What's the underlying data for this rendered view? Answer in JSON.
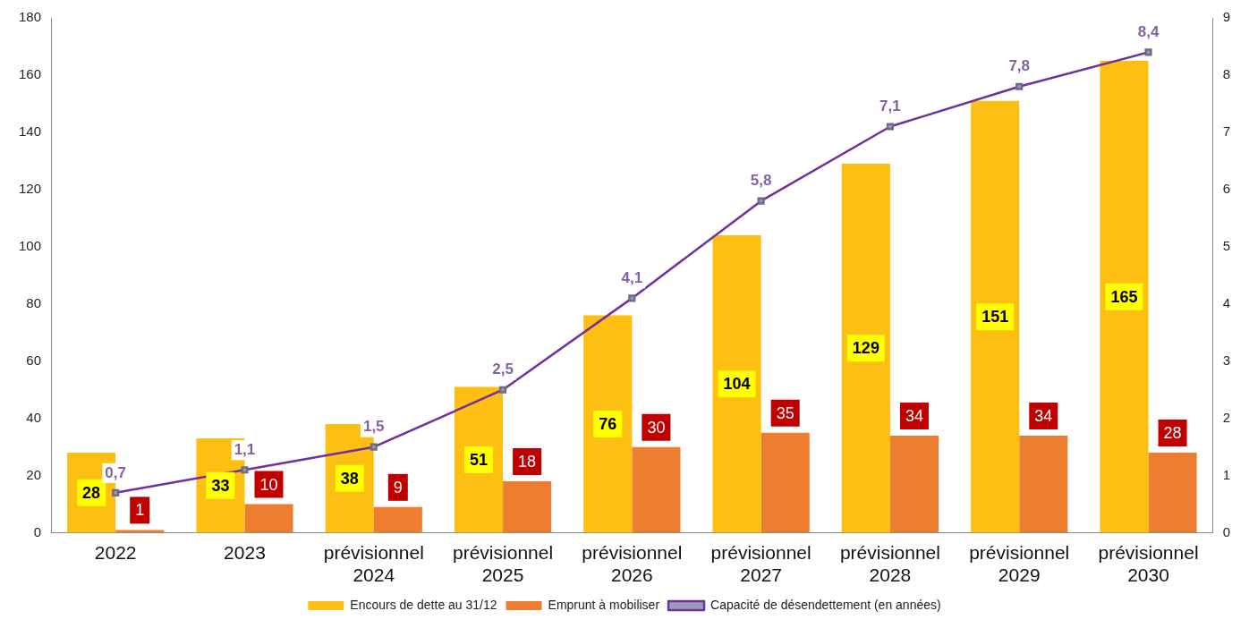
{
  "chart_data": {
    "type": "bar",
    "categories": [
      "2022",
      "2023",
      "prévisionnel 2024",
      "prévisionnel 2025",
      "prévisionnel 2026",
      "prévisionnel 2027",
      "prévisionnel 2028",
      "prévisionnel 2029",
      "prévisionnel 2030"
    ],
    "series": [
      {
        "name": "Encours de dette au 31/12",
        "color": "#fdbf11",
        "values": [
          28,
          33,
          38,
          51,
          76,
          104,
          129,
          151,
          165
        ],
        "value_labels": [
          "28",
          "33",
          "38",
          "51",
          "76",
          "104",
          "129",
          "151",
          "165"
        ]
      },
      {
        "name": "Emprunt à mobiliser",
        "color": "#ed7d31",
        "values": [
          1,
          10,
          9,
          18,
          30,
          35,
          34,
          34,
          28
        ],
        "value_labels": [
          "1",
          "10",
          "9",
          "18",
          "30",
          "35",
          "34",
          "34",
          "28"
        ]
      },
      {
        "name": "Capacité de désendettement (en années)",
        "type": "line",
        "axis": "y2",
        "color": "#7030a0",
        "marker": "square",
        "values": [
          0.7,
          1.1,
          1.5,
          2.5,
          4.1,
          5.8,
          7.1,
          7.8,
          8.4
        ],
        "value_labels": [
          "0,7",
          "1,1",
          "1,5",
          "2,5",
          "4,1",
          "5,8",
          "7,1",
          "7,8",
          "8,4"
        ]
      }
    ],
    "ylim": [
      0,
      180
    ],
    "yticks": [
      0,
      20,
      40,
      60,
      80,
      100,
      120,
      140,
      160,
      180
    ],
    "y2lim": [
      0,
      9
    ],
    "y2ticks": [
      0,
      1,
      2,
      3,
      4,
      5,
      6,
      7,
      8,
      9
    ],
    "grid": false,
    "legend": "bottom"
  }
}
